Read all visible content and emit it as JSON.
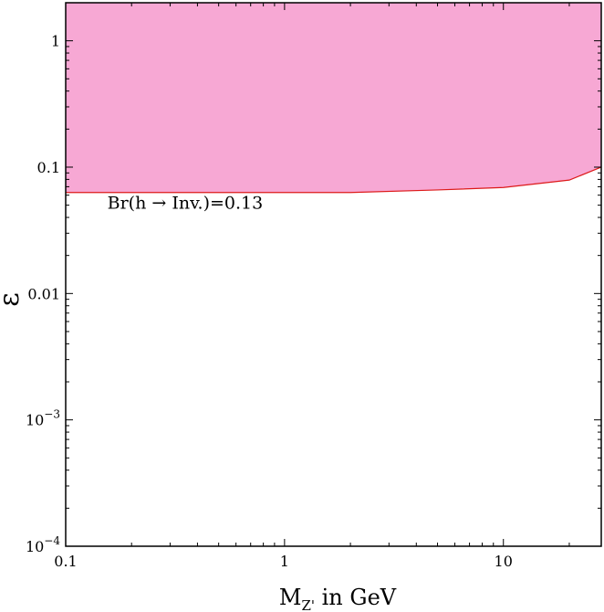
{
  "chart_data": {
    "type": "area",
    "title": "",
    "xlabel": "M",
    "xlabel_sub": "Z'",
    "xlabel_suffix": " in GeV",
    "ylabel": "ε",
    "xscale": "log",
    "yscale": "log",
    "xlim": [
      0.1,
      28
    ],
    "ylim": [
      0.0001,
      2
    ],
    "grid": false,
    "x_ticks": [
      0.1,
      1,
      10
    ],
    "x_tick_labels": [
      "0.1",
      "1",
      "10"
    ],
    "y_ticks": [
      0.0001,
      0.001,
      0.01,
      0.1,
      1
    ],
    "y_tick_labels": [
      {
        "base": "10",
        "exp": "−4"
      },
      {
        "base": "10",
        "exp": "−3"
      },
      {
        "base": "",
        "exp": "",
        "text": "0.01"
      },
      {
        "base": "",
        "exp": "",
        "text": "0.1"
      },
      {
        "base": "",
        "exp": "",
        "text": "1"
      }
    ],
    "series": [
      {
        "x": [
          0.1,
          0.5,
          1,
          2,
          5,
          10,
          20,
          28
        ],
        "y": [
          0.063,
          0.063,
          0.063,
          0.063,
          0.066,
          0.069,
          0.079,
          0.1
        ],
        "fill": "above",
        "fill_color": "#f7a8d4",
        "line_color": "#dd1a1a"
      }
    ],
    "annotations": [
      {
        "text": "Br(h → Inv.)=0.13",
        "x": 0.155,
        "y": 0.047
      }
    ]
  }
}
